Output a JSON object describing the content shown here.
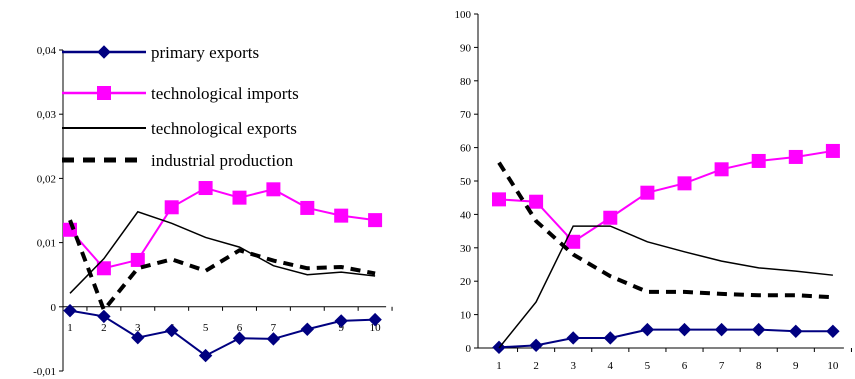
{
  "chart_data": [
    {
      "type": "line",
      "title": "",
      "xlabel": "",
      "ylabel": "",
      "x": [
        1,
        2,
        3,
        4,
        5,
        6,
        7,
        8,
        9,
        10
      ],
      "ylim": [
        -0.01,
        0.04
      ],
      "yticks": [
        -0.01,
        0,
        0.01,
        0.02,
        0.03,
        0.04
      ],
      "ytick_labels": [
        "-0,01",
        "0",
        "0,01",
        "0,02",
        "0,03",
        "0,04"
      ],
      "xtick_labels": [
        "1",
        "2",
        "3",
        "4",
        "5",
        "6",
        "7",
        "8",
        "9",
        "10"
      ],
      "grid": false,
      "legend_position": "top-left",
      "series": [
        {
          "name": "primary exports",
          "style": "line-diamond",
          "color": "#000080",
          "values": [
            -0.0006,
            -0.0015,
            -0.0048,
            -0.0037,
            -0.0076,
            -0.0049,
            -0.005,
            -0.0035,
            -0.0022,
            -0.002
          ]
        },
        {
          "name": "technological imports",
          "style": "line-square",
          "color": "#ff00ff",
          "values": [
            0.012,
            0.006,
            0.0073,
            0.0155,
            0.0185,
            0.017,
            0.0183,
            0.0154,
            0.0142,
            0.0135
          ]
        },
        {
          "name": "technological exports",
          "style": "solid",
          "color": "#000000",
          "values": [
            0.0021,
            0.0075,
            0.0148,
            0.013,
            0.0108,
            0.0093,
            0.0064,
            0.005,
            0.0054,
            0.0048
          ]
        },
        {
          "name": "industrial production",
          "style": "dashed",
          "color": "#000000",
          "values": [
            0.0135,
            -0.0005,
            0.006,
            0.0074,
            0.0056,
            0.0088,
            0.0072,
            0.006,
            0.0062,
            0.0052
          ]
        }
      ]
    },
    {
      "type": "line",
      "title": "",
      "xlabel": "",
      "ylabel": "",
      "x": [
        1,
        2,
        3,
        4,
        5,
        6,
        7,
        8,
        9,
        10
      ],
      "ylim": [
        0,
        100
      ],
      "yticks": [
        0,
        10,
        20,
        30,
        40,
        50,
        60,
        70,
        80,
        90,
        100
      ],
      "ytick_labels": [
        "0",
        "10",
        "20",
        "30",
        "40",
        "50",
        "60",
        "70",
        "80",
        "90",
        "100"
      ],
      "xtick_labels": [
        "1",
        "2",
        "3",
        "4",
        "5",
        "6",
        "7",
        "8",
        "9",
        "10"
      ],
      "grid": false,
      "series": [
        {
          "name": "primary exports",
          "style": "line-diamond",
          "color": "#000080",
          "values": [
            0.2,
            0.8,
            3,
            3,
            5.5,
            5.5,
            5.5,
            5.5,
            5,
            5
          ]
        },
        {
          "name": "technological imports",
          "style": "line-square",
          "color": "#ff00ff",
          "values": [
            44.5,
            43.8,
            31.8,
            39,
            46.5,
            49.3,
            53.5,
            56,
            57.2,
            59
          ]
        },
        {
          "name": "technological exports",
          "style": "solid",
          "color": "#000000",
          "values": [
            0,
            13.8,
            36.5,
            36.5,
            31.8,
            28.8,
            26,
            24,
            23,
            21.8
          ]
        },
        {
          "name": "industrial production",
          "style": "dashed",
          "color": "#000000",
          "values": [
            55.5,
            38,
            28,
            21.5,
            16.8,
            16.8,
            16.2,
            15.8,
            15.8,
            15.2
          ]
        }
      ]
    }
  ]
}
